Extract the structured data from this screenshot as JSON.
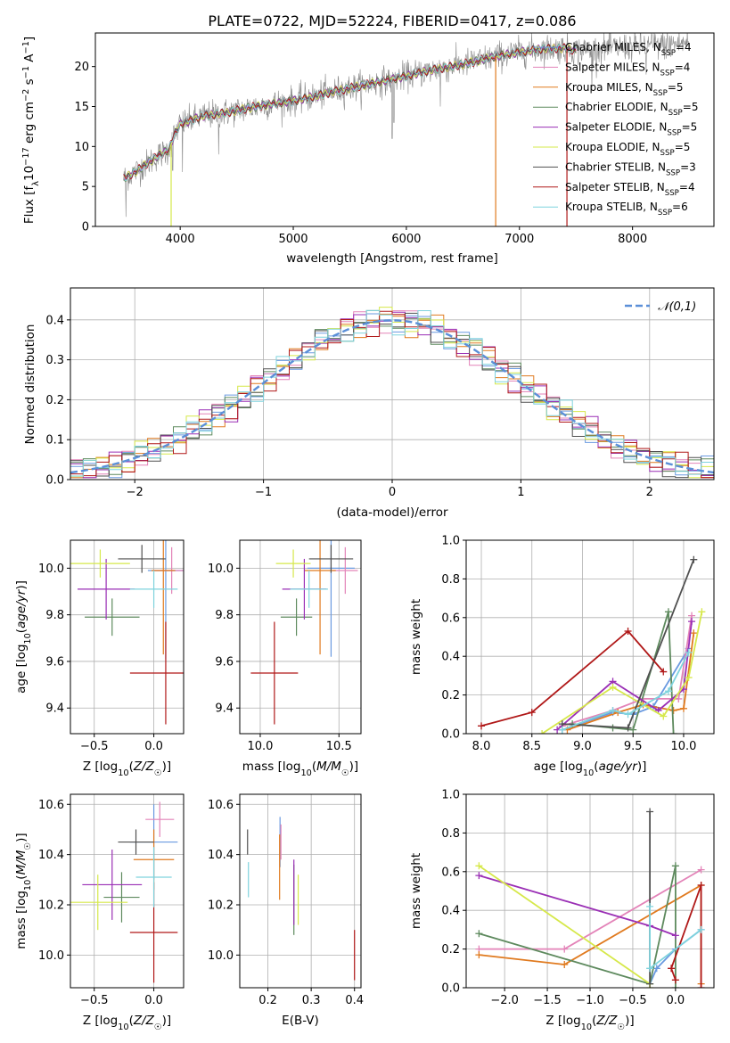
{
  "figure_title": "PLATE=0722, MJD=52224, FIBERID=0417, z=0.086",
  "colors": {
    "chabrier_miles": "#6a9ae0",
    "salpeter_miles": "#e383b8",
    "kroupa_miles": "#e07a1f",
    "chabrier_elodie": "#5e8a5e",
    "salpeter_elodie": "#9a2fb5",
    "kroupa_elodie": "#d6e84a",
    "chabrier_stelib": "#505050",
    "salpeter_stelib": "#b01818",
    "kroupa_stelib": "#7fd3dd",
    "gauss": "#5b8fd8"
  },
  "chart_data": [
    {
      "type": "line",
      "id": "spectrum",
      "title": "PLATE=0722, MJD=52224, FIBERID=0417, z=0.086",
      "xlabel": "wavelength [Angstrom, rest frame]",
      "ylabel": "Flux [f_λ 10^-17 erg cm^-2 s^-1 A^-1]",
      "xlim": [
        3250,
        8720
      ],
      "ylim": [
        0,
        24.2
      ],
      "xticks": [
        4000,
        5000,
        6000,
        7000,
        8000
      ],
      "yticks": [
        0,
        5,
        10,
        15,
        20
      ],
      "grid": false,
      "legend_position": "upper right",
      "legend": [
        {
          "main": "Chabrier MILES, N",
          "sub": "SSP",
          "tail": "=4"
        },
        {
          "main": "Salpeter MILES, N",
          "sub": "SSP",
          "tail": "=4"
        },
        {
          "main": "Kroupa MILES, N",
          "sub": "SSP",
          "tail": "=5"
        },
        {
          "main": "Chabrier ELODIE, N",
          "sub": "SSP",
          "tail": "=5"
        },
        {
          "main": "Salpeter ELODIE, N",
          "sub": "SSP",
          "tail": "=5"
        },
        {
          "main": "Kroupa ELODIE, N",
          "sub": "SSP",
          "tail": "=5"
        },
        {
          "main": "Chabrier STELIB, N",
          "sub": "SSP",
          "tail": "=3"
        },
        {
          "main": "Salpeter STELIB, N",
          "sub": "SSP",
          "tail": "=4"
        },
        {
          "main": "Kroupa STELIB, N",
          "sub": "SSP",
          "tail": "=6"
        }
      ],
      "continuum": [
        [
          3500,
          6.0
        ],
        [
          3600,
          6.8
        ],
        [
          3700,
          7.8
        ],
        [
          3800,
          8.8
        ],
        [
          3900,
          9.6
        ],
        [
          3950,
          11.5
        ],
        [
          4000,
          12.8
        ],
        [
          4200,
          13.8
        ],
        [
          4400,
          14.2
        ],
        [
          4600,
          14.8
        ],
        [
          4800,
          15.3
        ],
        [
          5000,
          15.7
        ],
        [
          5200,
          16.3
        ],
        [
          5400,
          17.0
        ],
        [
          5600,
          17.6
        ],
        [
          5800,
          18.2
        ],
        [
          6000,
          18.8
        ],
        [
          6200,
          19.5
        ],
        [
          6400,
          20.0
        ],
        [
          6600,
          20.6
        ],
        [
          6800,
          21.3
        ],
        [
          7000,
          21.8
        ],
        [
          7200,
          22.2
        ],
        [
          7400,
          22.3
        ],
        [
          7500,
          22.0
        ]
      ],
      "observed_range": [
        3500,
        8500
      ],
      "spikes": [
        [
          3520,
          1.2
        ],
        [
          3935,
          7.0
        ],
        [
          4020,
          6.8
        ],
        [
          4340,
          9.0
        ],
        [
          5875,
          11.0
        ],
        [
          5890,
          13.0
        ],
        [
          6300,
          15.0
        ],
        [
          7640,
          17.0
        ],
        [
          8120,
          19.0
        ],
        [
          8300,
          21.0
        ]
      ],
      "model_drop_lines": [
        [
          3920,
          "kroupa_elodie"
        ],
        [
          6790,
          "kroupa_miles"
        ],
        [
          7420,
          "salpeter_stelib"
        ]
      ]
    },
    {
      "type": "step",
      "id": "residual-histogram",
      "xlabel": "(data-model)/error",
      "ylabel": "Normed distribution",
      "xlim": [
        -2.5,
        2.5
      ],
      "ylim": [
        0,
        0.48
      ],
      "xticks": [
        -2,
        -1,
        0,
        1,
        2
      ],
      "yticks": [
        0.0,
        0.1,
        0.2,
        0.3,
        0.4
      ],
      "grid": true,
      "legend": "𝒩(0,1)",
      "legend_position": "upper right",
      "bin_width": 0.1,
      "bin_start": -2.5
    },
    {
      "type": "errorbar",
      "id": "age-vs-Z",
      "xlabel": "Z [log10(Z/Z☉)]",
      "ylabel": "age [log10(age/yr)]",
      "xlim": [
        -0.7,
        0.25
      ],
      "ylim": [
        9.29,
        10.12
      ],
      "xticks": [
        -0.5,
        0.0
      ],
      "yticks": [
        9.4,
        9.6,
        9.8,
        10.0
      ],
      "grid": true,
      "points": [
        {
          "model": "chabrier_miles",
          "x": 0.1,
          "xerr": 0.15,
          "y": 9.99,
          "yerr": 0.38
        },
        {
          "model": "salpeter_miles",
          "x": 0.15,
          "xerr": 0.15,
          "y": 9.99,
          "yerr": 0.1
        },
        {
          "model": "kroupa_miles",
          "x": 0.08,
          "xerr": 0.1,
          "y": 9.99,
          "yerr": 0.36
        },
        {
          "model": "chabrier_elodie",
          "x": -0.35,
          "xerr": 0.23,
          "y": 9.79,
          "yerr": 0.08
        },
        {
          "model": "salpeter_elodie",
          "x": -0.4,
          "xerr": 0.24,
          "y": 9.91,
          "yerr": 0.13
        },
        {
          "model": "kroupa_elodie",
          "x": -0.45,
          "xerr": 0.25,
          "y": 10.02,
          "yerr": 0.06
        },
        {
          "model": "chabrier_stelib",
          "x": -0.1,
          "xerr": 0.2,
          "y": 10.04,
          "yerr": 0.06
        },
        {
          "model": "salpeter_stelib",
          "x": 0.1,
          "xerr": 0.3,
          "y": 9.55,
          "yerr": 0.22
        },
        {
          "model": "kroupa_stelib",
          "x": 0.0,
          "xerr": 0.2,
          "y": 9.91,
          "yerr": 0.08
        }
      ]
    },
    {
      "type": "errorbar",
      "id": "age-vs-mass",
      "xlabel": "mass [log10(M/M☉)]",
      "ylabel": "",
      "xlim": [
        9.87,
        10.64
      ],
      "ylim": [
        9.29,
        10.12
      ],
      "xticks": [
        10.0,
        10.5
      ],
      "yticks": [
        9.4,
        9.6,
        9.8,
        10.0
      ],
      "grid": true,
      "points": [
        {
          "model": "chabrier_miles",
          "x": 10.45,
          "xerr": 0.15,
          "y": 10.0,
          "yerr": 0.38
        },
        {
          "model": "salpeter_miles",
          "x": 10.54,
          "xerr": 0.08,
          "y": 9.99,
          "yerr": 0.1
        },
        {
          "model": "kroupa_miles",
          "x": 10.38,
          "xerr": 0.1,
          "y": 9.99,
          "yerr": 0.36
        },
        {
          "model": "chabrier_elodie",
          "x": 10.23,
          "xerr": 0.1,
          "y": 9.79,
          "yerr": 0.08
        },
        {
          "model": "salpeter_elodie",
          "x": 10.28,
          "xerr": 0.14,
          "y": 9.91,
          "yerr": 0.13
        },
        {
          "model": "kroupa_elodie",
          "x": 10.21,
          "xerr": 0.11,
          "y": 10.02,
          "yerr": 0.06
        },
        {
          "model": "chabrier_stelib",
          "x": 10.45,
          "xerr": 0.14,
          "y": 10.04,
          "yerr": 0.06
        },
        {
          "model": "salpeter_stelib",
          "x": 10.09,
          "xerr": 0.15,
          "y": 9.55,
          "yerr": 0.22
        },
        {
          "model": "kroupa_stelib",
          "x": 10.31,
          "xerr": 0.12,
          "y": 9.91,
          "yerr": 0.08
        }
      ]
    },
    {
      "type": "line",
      "id": "massweight-vs-age",
      "xlabel": "age [log10(age/yr)]",
      "ylabel": "mass weight",
      "xlim": [
        7.85,
        10.3
      ],
      "ylim": [
        0,
        1.0
      ],
      "xticks": [
        8.0,
        8.5,
        9.0,
        9.5,
        10.0
      ],
      "yticks": [
        0.0,
        0.2,
        0.4,
        0.6,
        0.8,
        1.0
      ],
      "grid": true,
      "series": [
        {
          "model": "chabrier_miles",
          "x": [
            8.8,
            9.3,
            9.5,
            9.7,
            10.05
          ],
          "y": [
            0.02,
            0.11,
            0.1,
            0.14,
            0.44
          ]
        },
        {
          "model": "salpeter_miles",
          "x": [
            8.8,
            9.3,
            9.6,
            9.95,
            10.08
          ],
          "y": [
            0.04,
            0.12,
            0.18,
            0.18,
            0.61
          ]
        },
        {
          "model": "kroupa_miles",
          "x": [
            8.85,
            9.35,
            9.6,
            9.9,
            10.0,
            10.1
          ],
          "y": [
            0.02,
            0.11,
            0.15,
            0.12,
            0.13,
            0.52
          ]
        },
        {
          "model": "chabrier_elodie",
          "x": [
            8.9,
            9.3,
            9.5,
            9.85,
            9.9
          ],
          "y": [
            0.05,
            0.03,
            0.02,
            0.63,
            0.0
          ]
        },
        {
          "model": "salpeter_elodie",
          "x": [
            8.75,
            9.3,
            9.75,
            10.0,
            10.08
          ],
          "y": [
            0.02,
            0.27,
            0.12,
            0.23,
            0.58
          ]
        },
        {
          "model": "kroupa_elodie",
          "x": [
            8.6,
            9.3,
            9.8,
            10.05,
            10.18
          ],
          "y": [
            0.0,
            0.24,
            0.09,
            0.29,
            0.63
          ]
        },
        {
          "model": "chabrier_stelib",
          "x": [
            8.8,
            9.45,
            10.1
          ],
          "y": [
            0.05,
            0.03,
            0.9
          ]
        },
        {
          "model": "salpeter_stelib",
          "x": [
            8.0,
            8.5,
            9.45,
            9.8
          ],
          "y": [
            0.04,
            0.11,
            0.53,
            0.32
          ]
        },
        {
          "model": "kroupa_stelib",
          "x": [
            8.8,
            9.3,
            9.45,
            9.85,
            10.05
          ],
          "y": [
            0.02,
            0.12,
            0.1,
            0.22,
            0.42
          ]
        }
      ]
    },
    {
      "type": "errorbar",
      "id": "mass-vs-Z",
      "xlabel": "Z [log10(Z/Z☉)]",
      "ylabel": "mass [log10(M/M☉)]",
      "xlim": [
        -0.7,
        0.25
      ],
      "ylim": [
        9.87,
        10.64
      ],
      "xticks": [
        -0.5,
        0.0
      ],
      "yticks": [
        10.0,
        10.2,
        10.4,
        10.6
      ],
      "grid": true,
      "points": [
        {
          "model": "chabrier_miles",
          "x": 0.0,
          "xerr": 0.2,
          "y": 10.45,
          "yerr": 0.15
        },
        {
          "model": "salpeter_miles",
          "x": 0.05,
          "xerr": 0.12,
          "y": 10.54,
          "yerr": 0.07
        },
        {
          "model": "kroupa_miles",
          "x": 0.0,
          "xerr": 0.17,
          "y": 10.38,
          "yerr": 0.12
        },
        {
          "model": "chabrier_elodie",
          "x": -0.27,
          "xerr": 0.15,
          "y": 10.23,
          "yerr": 0.1
        },
        {
          "model": "salpeter_elodie",
          "x": -0.35,
          "xerr": 0.25,
          "y": 10.28,
          "yerr": 0.14
        },
        {
          "model": "kroupa_elodie",
          "x": -0.47,
          "xerr": 0.25,
          "y": 10.21,
          "yerr": 0.11
        },
        {
          "model": "chabrier_stelib",
          "x": -0.15,
          "xerr": 0.15,
          "y": 10.45,
          "yerr": 0.05
        },
        {
          "model": "salpeter_stelib",
          "x": 0.0,
          "xerr": 0.2,
          "y": 10.09,
          "yerr": 0.2
        },
        {
          "model": "kroupa_stelib",
          "x": 0.0,
          "xerr": 0.15,
          "y": 10.31,
          "yerr": 0.12
        }
      ]
    },
    {
      "type": "errorbar",
      "id": "mass-vs-ebv",
      "xlabel": "E(B-V)",
      "ylabel": "",
      "xlim": [
        0.135,
        0.415
      ],
      "ylim": [
        9.87,
        10.64
      ],
      "xticks": [
        0.2,
        0.3,
        0.4
      ],
      "yticks": [
        10.0,
        10.2,
        10.4,
        10.6
      ],
      "grid": true,
      "points": [
        {
          "model": "chabrier_miles",
          "x": 0.228,
          "y": 10.45,
          "yerr": 0.1
        },
        {
          "model": "salpeter_miles",
          "x": 0.23,
          "y": 10.45,
          "yerr": 0.07
        },
        {
          "model": "kroupa_miles",
          "x": 0.227,
          "y": 10.35,
          "yerr": 0.13
        },
        {
          "model": "chabrier_elodie",
          "x": 0.26,
          "y": 10.22,
          "yerr": 0.14
        },
        {
          "model": "salpeter_elodie",
          "x": 0.26,
          "y": 10.25,
          "yerr": 0.13
        },
        {
          "model": "kroupa_elodie",
          "x": 0.27,
          "y": 10.22,
          "yerr": 0.1
        },
        {
          "model": "chabrier_stelib",
          "x": 0.153,
          "y": 10.45,
          "yerr": 0.05
        },
        {
          "model": "salpeter_stelib",
          "x": 0.4,
          "y": 10.0,
          "yerr": 0.1
        },
        {
          "model": "kroupa_stelib",
          "x": 0.155,
          "y": 10.3,
          "yerr": 0.07
        }
      ]
    },
    {
      "type": "line",
      "id": "massweight-vs-Z",
      "xlabel": "Z [log10(Z/Z☉)]",
      "ylabel": "mass weight",
      "xlim": [
        -2.45,
        0.45
      ],
      "ylim": [
        0,
        1.0
      ],
      "xticks": [
        -2.0,
        -1.5,
        -1.0,
        -0.5,
        0.0
      ],
      "yticks": [
        0.0,
        0.2,
        0.4,
        0.6,
        0.8,
        1.0
      ],
      "grid": true,
      "series": [
        {
          "model": "chabrier_miles",
          "x": [
            -0.3,
            -0.22,
            0.0,
            0.3
          ],
          "y": [
            0.02,
            0.1,
            0.2,
            0.3
          ]
        },
        {
          "model": "salpeter_miles",
          "x": [
            -2.3,
            -1.3,
            0.3
          ],
          "y": [
            0.2,
            0.2,
            0.61
          ]
        },
        {
          "model": "kroupa_miles",
          "x": [
            -2.3,
            -1.3,
            0.3,
            0.3
          ],
          "y": [
            0.17,
            0.12,
            0.53,
            0.02
          ]
        },
        {
          "model": "chabrier_elodie",
          "x": [
            -2.3,
            -0.3,
            0.0,
            0.0
          ],
          "y": [
            0.28,
            0.02,
            0.63,
            0.0
          ]
        },
        {
          "model": "salpeter_elodie",
          "x": [
            -2.3,
            -0.3,
            0.0
          ],
          "y": [
            0.58,
            0.32,
            0.27
          ]
        },
        {
          "model": "kroupa_elodie",
          "x": [
            -2.3,
            -0.3,
            -0.3
          ],
          "y": [
            0.63,
            0.02,
            0.0
          ]
        },
        {
          "model": "chabrier_stelib",
          "x": [
            -0.3,
            -0.3
          ],
          "y": [
            0.91,
            0.02
          ]
        },
        {
          "model": "salpeter_stelib",
          "x": [
            0.0,
            -0.05,
            0.3,
            0.3
          ],
          "y": [
            0.04,
            0.1,
            0.53,
            0.0
          ]
        },
        {
          "model": "kroupa_stelib",
          "x": [
            -0.3,
            -0.3,
            0.3
          ],
          "y": [
            0.42,
            0.1,
            0.3
          ]
        }
      ]
    }
  ]
}
